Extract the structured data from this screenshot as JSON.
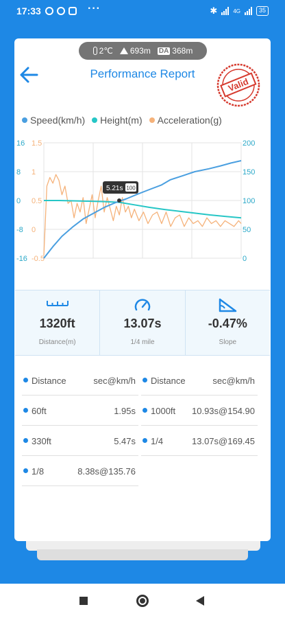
{
  "status_bar": {
    "time": "17:33",
    "dots": "···",
    "network1": "4G",
    "battery": "35"
  },
  "environment": {
    "temperature": "2℃",
    "altitude": "693m",
    "da_label": "DA",
    "density_altitude": "368m"
  },
  "header": {
    "title": "Performance Report",
    "stamp_text": "Valid"
  },
  "legend": [
    {
      "label": "Speed(km/h)",
      "color": "#4a9fe0"
    },
    {
      "label": "Height(m)",
      "color": "#26c6c6"
    },
    {
      "label": "Acceleration(g)",
      "color": "#f5b27a"
    }
  ],
  "chart_data": {
    "type": "line",
    "tooltip": {
      "time": "5.21s",
      "value": "100"
    },
    "axes": {
      "left_outer": {
        "color": "#2aa8c8",
        "ticks": [
          "16",
          "8",
          "0",
          "-8",
          "-16"
        ]
      },
      "left_inner": {
        "color": "#f5b27a",
        "ticks": [
          "1.5",
          "1",
          "0.5",
          "0",
          "-0.5"
        ]
      },
      "right": {
        "color": "#2aa8c8",
        "ticks": [
          "200",
          "150",
          "100",
          "50",
          "0"
        ]
      }
    },
    "xlim": [
      0,
      13.07
    ],
    "series": [
      {
        "name": "Speed(km/h)",
        "axis": "right",
        "color": "#4a9fe0",
        "x": [
          0,
          0.6,
          1.2,
          1.95,
          2.6,
          3.3,
          4.0,
          4.7,
          5.47,
          6.2,
          7.0,
          7.8,
          8.38,
          9.2,
          10.0,
          10.93,
          11.7,
          12.4,
          13.07
        ],
        "y": [
          0,
          20,
          38,
          55,
          68,
          78,
          88,
          96,
          103,
          111,
          119,
          127,
          136,
          143,
          150,
          155,
          160,
          165,
          169
        ]
      },
      {
        "name": "Height(m)",
        "axis": "left_outer",
        "color": "#26c6c6",
        "x": [
          0,
          1,
          2,
          3,
          4,
          5,
          6,
          7,
          8,
          9,
          10,
          11,
          12,
          13.07
        ],
        "y": [
          0,
          0,
          -0.1,
          -0.2,
          -0.3,
          -0.5,
          -1.2,
          -1.9,
          -2.5,
          -3.0,
          -3.5,
          -4.0,
          -4.4,
          -4.8
        ]
      },
      {
        "name": "Acceleration(g)",
        "axis": "left_inner",
        "color": "#f5b27a",
        "x": [
          0,
          0.2,
          0.4,
          0.6,
          0.8,
          1.0,
          1.2,
          1.4,
          1.6,
          1.8,
          2.0,
          2.2,
          2.4,
          2.6,
          2.8,
          3.0,
          3.2,
          3.4,
          3.6,
          3.8,
          4.0,
          4.2,
          4.4,
          4.6,
          4.8,
          5.0,
          5.2,
          5.4,
          5.6,
          5.8,
          6.0,
          6.3,
          6.6,
          6.9,
          7.2,
          7.5,
          7.8,
          8.1,
          8.4,
          8.7,
          9.0,
          9.3,
          9.6,
          9.9,
          10.2,
          10.5,
          10.8,
          11.1,
          11.4,
          11.7,
          12.0,
          12.3,
          12.6,
          12.9,
          13.07
        ],
        "y": [
          -0.45,
          0.75,
          0.9,
          0.8,
          0.95,
          0.85,
          0.6,
          0.75,
          0.45,
          0.5,
          0.2,
          0.45,
          0.3,
          0.55,
          0.1,
          0.35,
          0.6,
          0.2,
          0.5,
          0.75,
          0.3,
          0.55,
          0.35,
          0.15,
          0.4,
          0.25,
          0.55,
          0.3,
          0.4,
          0.2,
          0.35,
          0.15,
          0.3,
          0.1,
          0.25,
          0.3,
          0.1,
          0.3,
          0.05,
          0.2,
          0.25,
          0.05,
          0.2,
          0.1,
          0.15,
          0.05,
          0.2,
          0.1,
          0.15,
          0.05,
          0.15,
          0.1,
          0.05,
          0.15,
          0.1
        ]
      }
    ]
  },
  "stats": [
    {
      "value": "1320ft",
      "label": "Distance(m)",
      "icon": "ruler-icon"
    },
    {
      "value": "13.07s",
      "label": "1/4 mile",
      "icon": "speedometer-icon"
    },
    {
      "value": "-0.47%",
      "label": "Slope",
      "icon": "slope-icon"
    }
  ],
  "results": {
    "left": [
      {
        "name": "Distance",
        "value": "sec@km/h"
      },
      {
        "name": "60ft",
        "value": "1.95s"
      },
      {
        "name": "330ft",
        "value": "5.47s"
      },
      {
        "name": "1/8",
        "value": "8.38s@135.76"
      }
    ],
    "right": [
      {
        "name": "Distance",
        "value": "sec@km/h"
      },
      {
        "name": "1000ft",
        "value": "10.93s@154.90"
      },
      {
        "name": "1/4",
        "value": "13.07s@169.45"
      }
    ]
  },
  "accent_color": "#1e88e5"
}
